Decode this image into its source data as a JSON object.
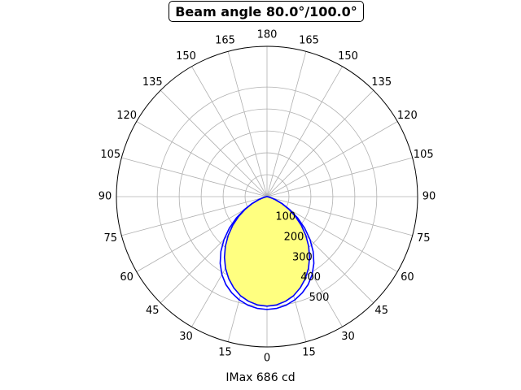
{
  "chart_data": {
    "type": "polar",
    "title": "Beam angle 80.0°/100.0°",
    "xlabel": "IMax 686 cd",
    "angle_tick_labels": [
      "0",
      "15",
      "30",
      "45",
      "60",
      "75",
      "90",
      "105",
      "120",
      "135",
      "150",
      "165",
      "180",
      "165",
      "150",
      "135",
      "120",
      "105",
      "90",
      "75",
      "60",
      "45",
      "30",
      "15"
    ],
    "radial_tick_labels": [
      "100",
      "200",
      "300",
      "400",
      "500"
    ],
    "radial_ticks": [
      100,
      200,
      300,
      400,
      500
    ],
    "rlim": [
      0,
      686
    ],
    "grid": true,
    "fill_color": "#ffff80",
    "line_color": "#0000ff",
    "series": [
      {
        "angles_deg": [
          0,
          5,
          10,
          15,
          20,
          25,
          30,
          35,
          40,
          45,
          50,
          55,
          60,
          65,
          70,
          75,
          80,
          85,
          90
        ],
        "values": [
          500,
          496,
          485,
          468,
          443,
          413,
          378,
          338,
          295,
          250,
          204,
          158,
          114,
          74,
          40,
          15,
          3,
          0,
          0
        ]
      },
      {
        "angles_deg": [
          0,
          5,
          10,
          15,
          20,
          25,
          30,
          35,
          40,
          45,
          50,
          55,
          60,
          65,
          70,
          75,
          80,
          85,
          90
        ],
        "values": [
          515,
          512,
          503,
          488,
          468,
          443,
          411,
          372,
          327,
          277,
          224,
          171,
          120,
          76,
          41,
          16,
          3,
          0,
          0
        ]
      }
    ]
  }
}
